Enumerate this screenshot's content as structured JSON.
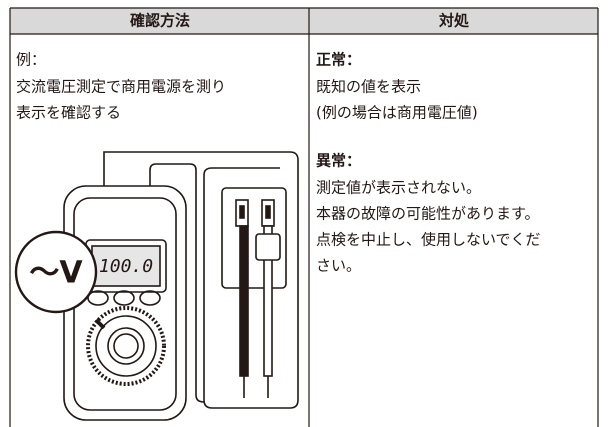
{
  "table": {
    "headers": [
      "確認方法",
      "対処"
    ],
    "left": {
      "lines": [
        "例：",
        "交流電圧測定で商用電源を測り",
        "表示を確認する"
      ],
      "illustration": {
        "display": "100.0",
        "callout": "～V"
      }
    },
    "right": {
      "sections": [
        {
          "heading": "正常：",
          "lines": [
            "既知の値を表示",
            "(例の場合は商用電圧値)"
          ]
        },
        {
          "heading": "異常：",
          "lines": [
            "測定値が表示されない。",
            "本器の故障の可能性があります。",
            "点検を中止し、使用しないでくだ",
            "さい。"
          ]
        }
      ]
    }
  }
}
